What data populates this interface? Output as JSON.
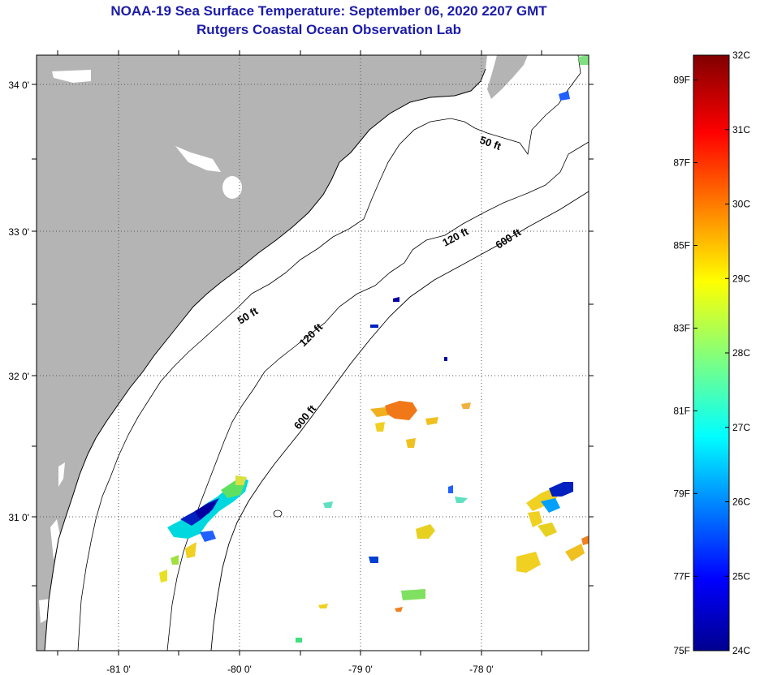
{
  "header": {
    "title": "NOAA-19 Sea Surface Temperature:  September 06, 2020 2207 GMT",
    "subtitle": "Rutgers Coastal Ocean Observation Lab"
  },
  "map": {
    "lat_labels": [
      "34 0'",
      "33 0'",
      "32 0'",
      "31 0'"
    ],
    "lon_labels": [
      "-81 0'",
      "-80 0'",
      "-79 0'",
      "-78 0'"
    ],
    "land_color": "#b4b4b4",
    "contour_labels": [
      {
        "id": "c50-north",
        "text": "50 ft"
      },
      {
        "id": "c120-north",
        "text": "120 ft"
      },
      {
        "id": "c600-north",
        "text": "600 ft"
      },
      {
        "id": "c50-south",
        "text": "50 ft"
      },
      {
        "id": "c120-south",
        "text": "120 ft"
      },
      {
        "id": "c600-south",
        "text": "600 ft"
      }
    ]
  },
  "colorbar": {
    "fahrenheit_labels": [
      "89F",
      "87F",
      "85F",
      "83F",
      "81F",
      "79F",
      "77F",
      "75F"
    ],
    "celsius_labels": [
      "32C",
      "31C",
      "30C",
      "29C",
      "28C",
      "27C",
      "26C",
      "25C",
      "24C"
    ],
    "range_c": [
      24,
      32
    ]
  }
}
